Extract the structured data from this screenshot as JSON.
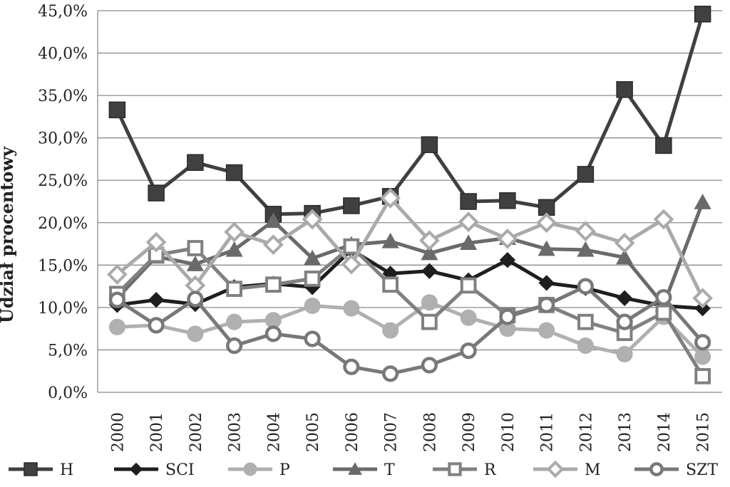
{
  "chart_data": {
    "type": "line",
    "title": "",
    "xlabel": "",
    "ylabel": "Udział procentowy",
    "ylim": [
      0,
      45
    ],
    "y_ticks": [
      "0,0%",
      "5,0%",
      "10,0%",
      "15,0%",
      "20,0%",
      "25,0%",
      "30,0%",
      "35,0%",
      "40,0%",
      "45,0%"
    ],
    "y_tick_values": [
      0,
      5,
      10,
      15,
      20,
      25,
      30,
      35,
      40,
      45
    ],
    "categories": [
      "2000",
      "2001",
      "2002",
      "2003",
      "2004",
      "2005",
      "2006",
      "2007",
      "2008",
      "2009",
      "2010",
      "2011",
      "2012",
      "2013",
      "2014",
      "2015"
    ],
    "grid": true,
    "legend_position": "bottom",
    "series": [
      {
        "name": "H",
        "marker": "square-filled",
        "color": "#404040",
        "values": [
          33.3,
          23.5,
          27.1,
          25.9,
          21.0,
          21.1,
          22.0,
          23.1,
          29.2,
          22.5,
          22.6,
          21.8,
          25.7,
          35.7,
          29.1,
          44.6
        ]
      },
      {
        "name": "SCI",
        "marker": "diamond-filled",
        "color": "#1e1e1e",
        "values": [
          10.3,
          10.9,
          10.4,
          12.4,
          12.8,
          12.4,
          16.8,
          14.0,
          14.3,
          13.2,
          15.6,
          12.9,
          12.3,
          11.1,
          10.2,
          9.9
        ]
      },
      {
        "name": "P",
        "marker": "circle-filled",
        "color": "#b0b0b0",
        "values": [
          7.7,
          7.9,
          6.9,
          8.3,
          8.5,
          10.2,
          9.9,
          7.3,
          10.6,
          8.8,
          7.5,
          7.3,
          5.5,
          4.5,
          8.9,
          4.2
        ]
      },
      {
        "name": "T",
        "marker": "triangle-filled",
        "color": "#6a6a6a",
        "values": [
          11.1,
          16.0,
          15.1,
          16.8,
          20.2,
          15.8,
          17.4,
          17.8,
          16.4,
          17.6,
          18.2,
          16.9,
          16.8,
          15.9,
          10.3,
          22.4
        ]
      },
      {
        "name": "R",
        "marker": "square-open",
        "color": "#808080",
        "values": [
          11.6,
          16.2,
          17.0,
          12.2,
          12.7,
          13.4,
          17.2,
          12.7,
          8.3,
          12.6,
          9.1,
          10.3,
          8.3,
          7.0,
          9.4,
          1.9
        ]
      },
      {
        "name": "M",
        "marker": "diamond-open",
        "color": "#aaaaaa",
        "values": [
          13.9,
          17.7,
          12.6,
          18.9,
          17.4,
          20.4,
          15.1,
          22.9,
          17.9,
          20.1,
          18.1,
          20.0,
          19.0,
          17.6,
          20.4,
          11.1
        ]
      },
      {
        "name": "SZT",
        "marker": "circle-open",
        "color": "#787878",
        "values": [
          10.9,
          7.9,
          11.0,
          5.5,
          6.9,
          6.3,
          3.0,
          2.2,
          3.2,
          4.9,
          8.9,
          10.3,
          12.5,
          8.3,
          11.2,
          5.9
        ]
      }
    ]
  }
}
